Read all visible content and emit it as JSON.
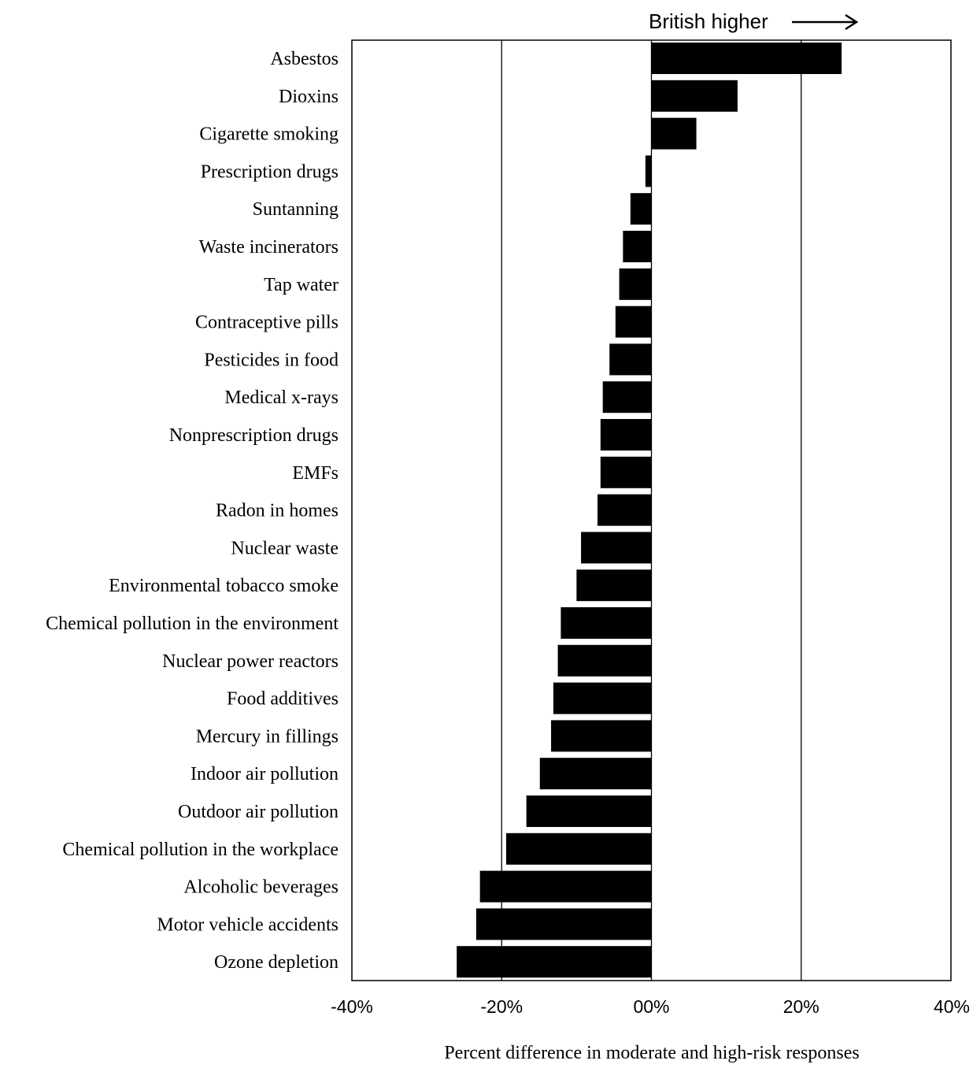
{
  "chart_data": {
    "type": "bar",
    "orientation": "horizontal",
    "categories": [
      "Asbestos",
      "Dioxins",
      "Cigarette smoking",
      "Prescription drugs",
      "Suntanning",
      "Waste incinerators",
      "Tap water",
      "Contraceptive pills",
      "Pesticides in food",
      "Medical x-rays",
      "Nonprescription drugs",
      "EMFs",
      "Radon in homes",
      "Nuclear waste",
      "Environmental tobacco smoke",
      "Chemical pollution in the environment",
      "Nuclear power reactors",
      "Food additives",
      "Mercury in fillings",
      "Indoor air pollution",
      "Outdoor air pollution",
      "Chemical pollution in the workplace",
      "Alcoholic beverages",
      "Motor vehicle accidents",
      "Ozone depletion"
    ],
    "values": [
      25.4,
      11.5,
      6.0,
      -0.8,
      -2.8,
      -3.8,
      -4.3,
      -4.8,
      -5.6,
      -6.5,
      -6.8,
      -6.8,
      -7.2,
      -9.4,
      -10.0,
      -12.1,
      -12.5,
      -13.1,
      -13.4,
      -14.9,
      -16.7,
      -19.4,
      -22.9,
      -23.4,
      -26.0
    ],
    "xlim": [
      -40,
      40
    ],
    "xticks": [
      -40,
      -20,
      0,
      20,
      40
    ],
    "xtick_labels": [
      "-40%",
      "-20%",
      "00%",
      "20%",
      "40%"
    ],
    "xlabel": "Percent difference in moderate and high-risk responses",
    "ylabel": "",
    "title": "",
    "annotation": "British higher",
    "grid": "vertical lines at -20% and 20%",
    "bar_color": "#000000"
  }
}
